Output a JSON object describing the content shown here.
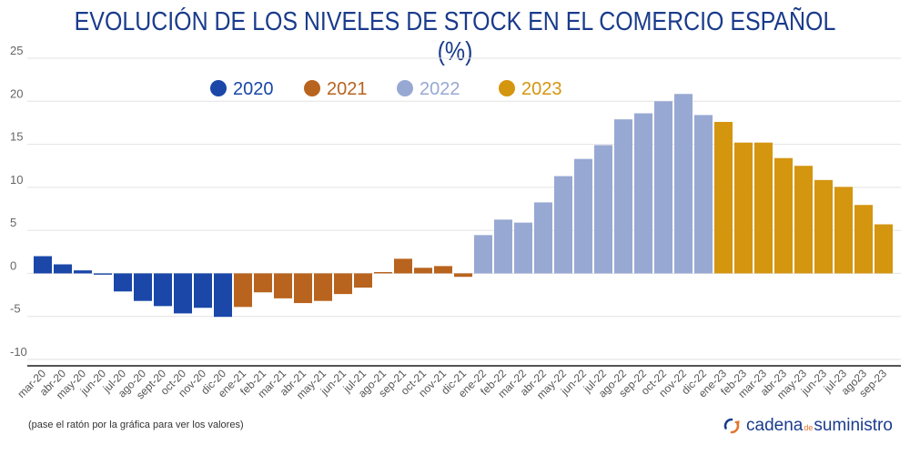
{
  "chart_data": {
    "type": "bar",
    "title": "EVOLUCIÓN DE LOS NIVELES DE STOCK EN EL COMERCIO ESPAÑOL (%)",
    "xlabel": "",
    "ylabel": "",
    "ylim": [
      -10,
      25
    ],
    "yticks": [
      25,
      20,
      15,
      10,
      5,
      0,
      -5,
      -10
    ],
    "grid": true,
    "legend_position": "top-center",
    "categories": [
      "mar-20",
      "abr-20",
      "may-20",
      "jun-20",
      "jul-20",
      "ago-20",
      "sept-20",
      "oct-20",
      "nov-20",
      "dic-20",
      "ene-21",
      "feb-21",
      "mar-21",
      "abr-21",
      "may-21",
      "jun-21",
      "jul-21",
      "ago-21",
      "sep-21",
      "oct-21",
      "nov-21",
      "dic-21",
      "ene-22",
      "feb-22",
      "mar-22",
      "abr-22",
      "may-22",
      "jun-22",
      "jul-22",
      "ago-22",
      "sep-22",
      "oct-22",
      "nov-22",
      "dic-22",
      "ene-23",
      "feb-23",
      "mar-23",
      "abr-23",
      "may-23",
      "jun-23",
      "jul-23",
      "ago23",
      "sep-23"
    ],
    "values": [
      2.0,
      1.05,
      0.35,
      -0.15,
      -2.1,
      -3.2,
      -3.8,
      -4.65,
      -4.0,
      -5.05,
      -3.9,
      -2.2,
      -2.9,
      -3.45,
      -3.2,
      -2.4,
      -1.65,
      0.15,
      1.7,
      0.65,
      0.85,
      -0.4,
      4.45,
      6.25,
      5.9,
      8.25,
      11.3,
      13.3,
      14.9,
      17.9,
      18.6,
      20.0,
      20.85,
      18.4,
      17.6,
      15.2,
      15.2,
      13.4,
      12.5,
      10.85,
      10.05,
      7.95,
      5.7
    ],
    "series_by_year": [
      {
        "name": "2020",
        "color": "#1a47a8",
        "count": 10
      },
      {
        "name": "2021",
        "color": "#b8631e",
        "count": 12
      },
      {
        "name": "2022",
        "color": "#97a8d2",
        "count": 12
      },
      {
        "name": "2023",
        "color": "#d4950f",
        "count": 9
      }
    ]
  },
  "footer": {
    "note": "(pase el ratón por la gráfica para ver los valores)",
    "brand_part1": "cadena",
    "brand_part2": "de",
    "brand_part3": "suministro"
  }
}
